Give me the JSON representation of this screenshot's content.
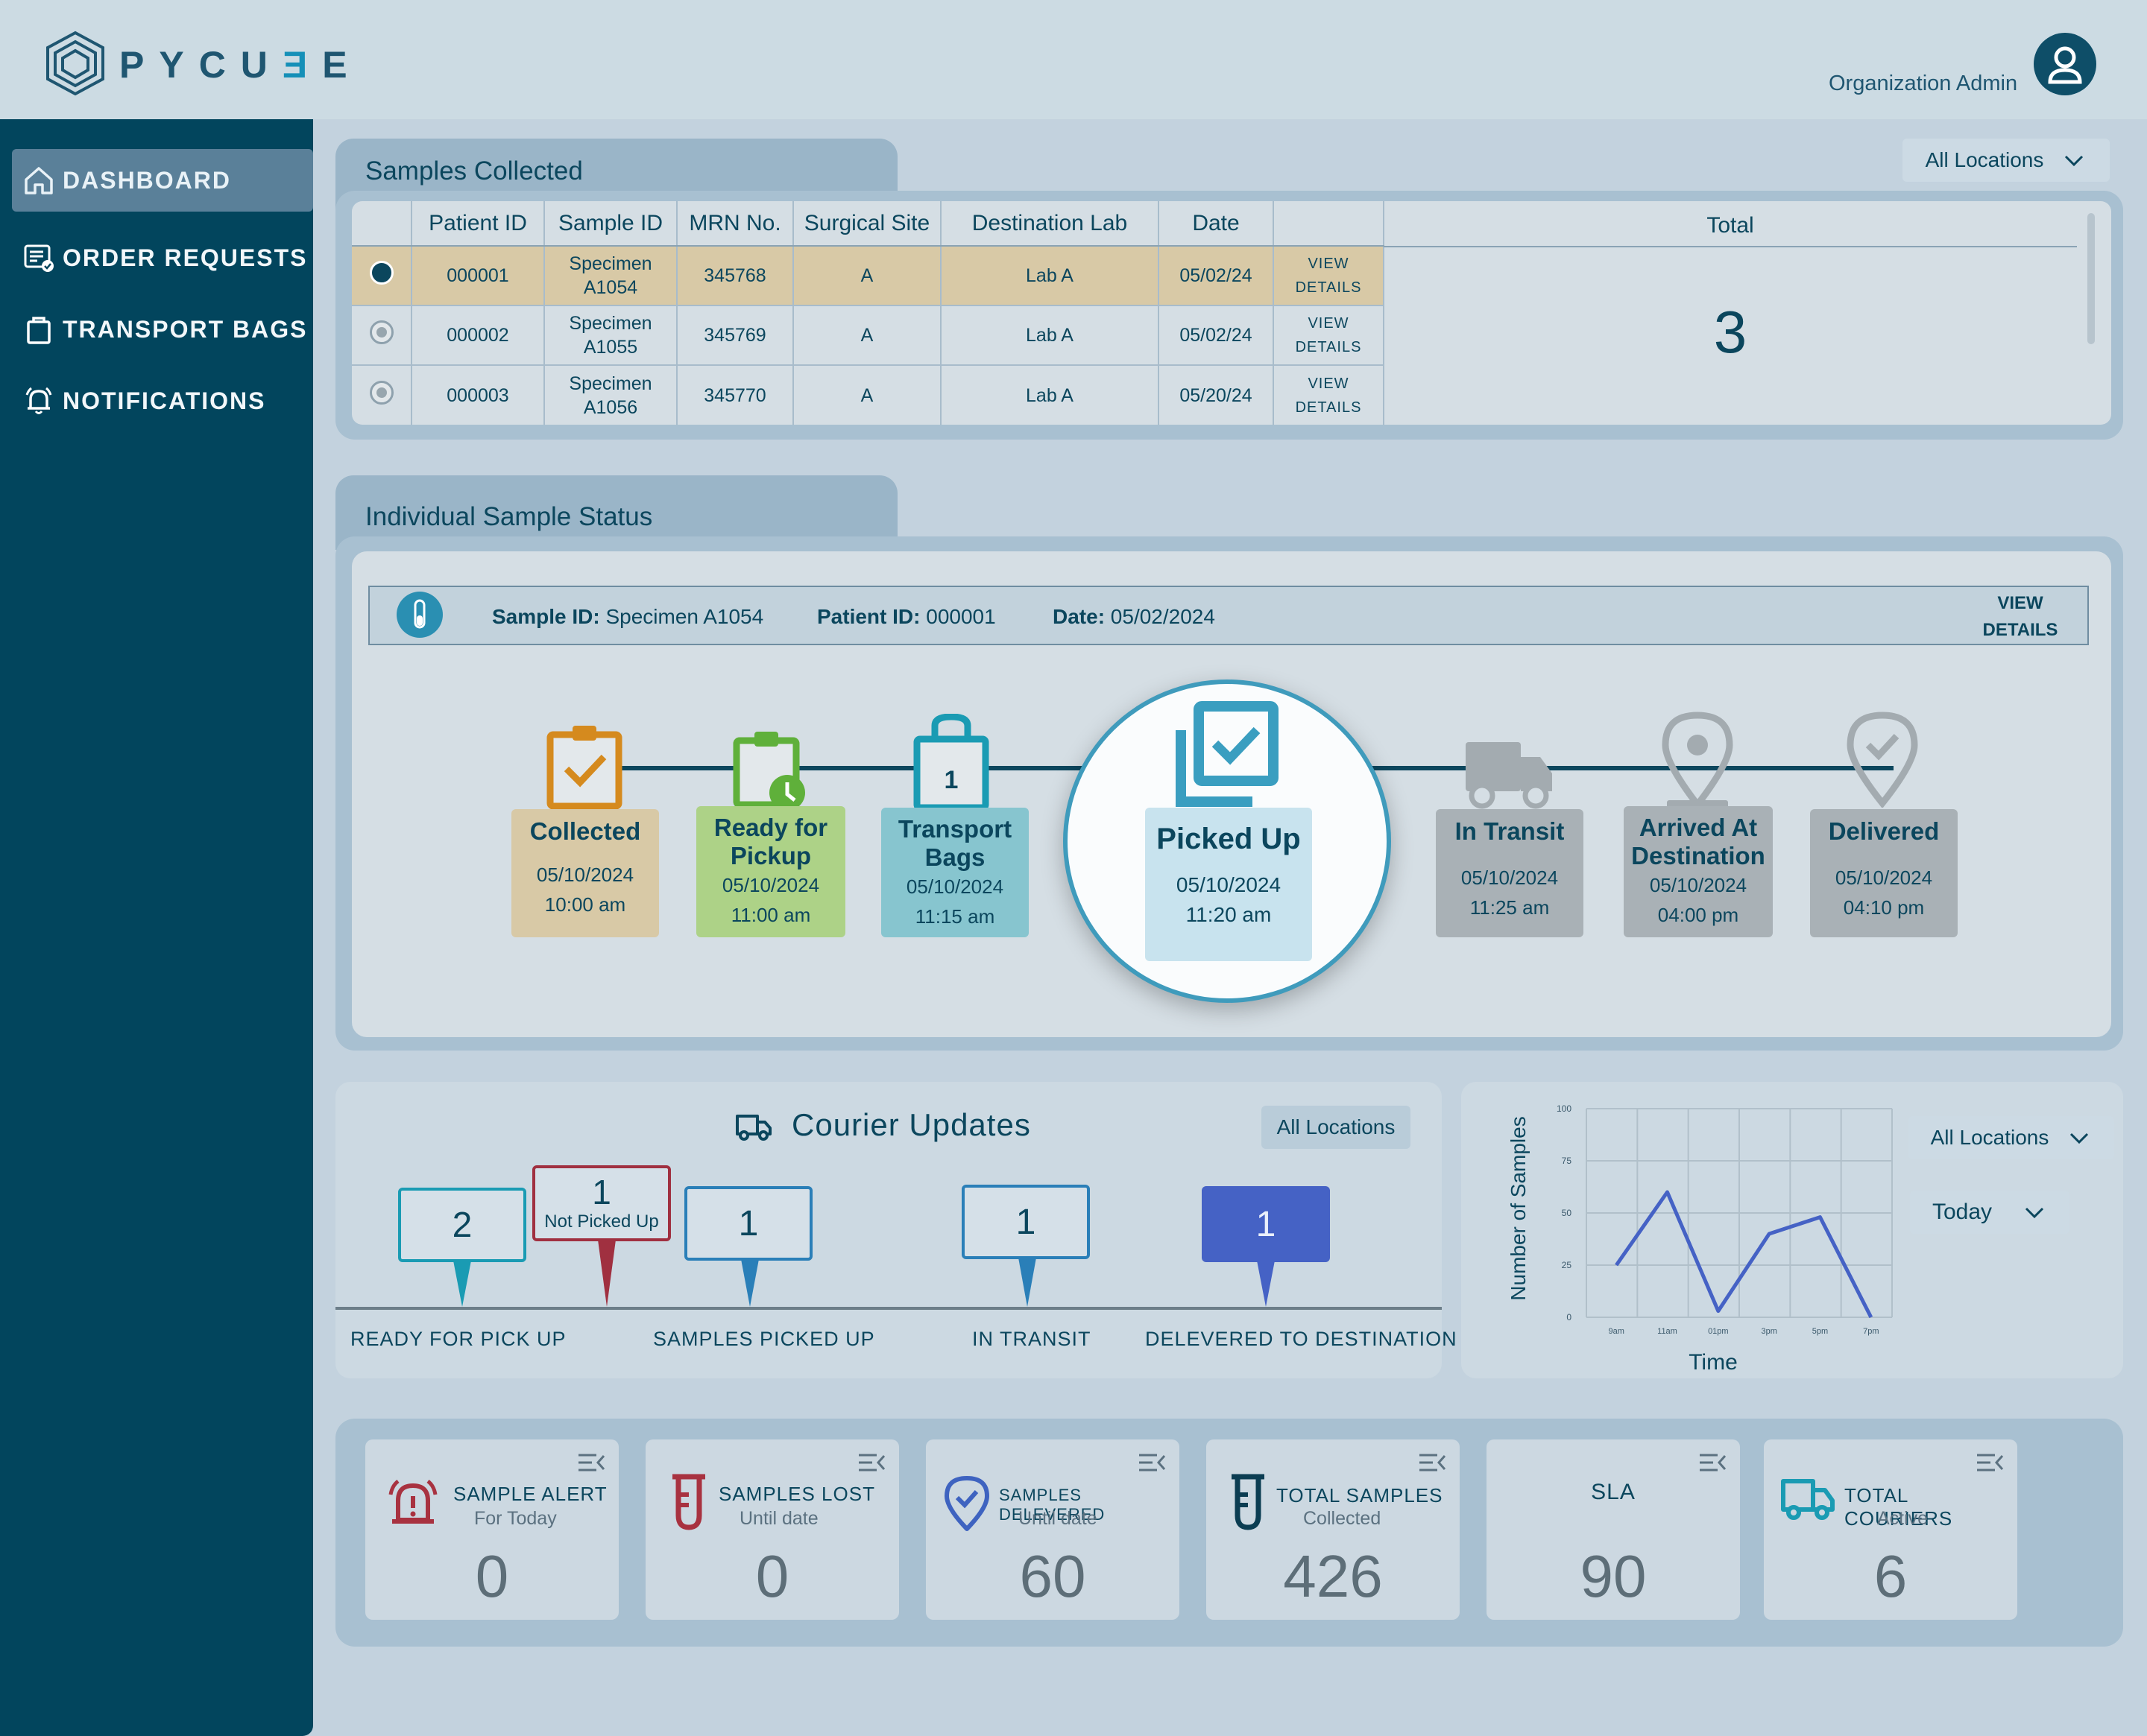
{
  "app": {
    "logo_text_a": "PYCU",
    "logo_text_b": "Ǝ",
    "logo_text_c": "E",
    "user_role": "Organization Admin"
  },
  "sidebar": {
    "items": [
      {
        "label": "DASHBOARD",
        "icon": "home-icon",
        "active": true
      },
      {
        "label": "ORDER REQUESTS",
        "icon": "order-list-icon"
      },
      {
        "label": "TRANSPORT BAGS",
        "icon": "bag-icon"
      },
      {
        "label": "NOTIFICATIONS",
        "icon": "bell-icon"
      }
    ]
  },
  "samples": {
    "title": "Samples Collected",
    "location_filter": "All Locations",
    "columns": [
      "Patient ID",
      "Sample ID",
      "MRN No.",
      "Surgical Site",
      "Destination Lab",
      "Date"
    ],
    "total_label": "Total",
    "total_value": "3",
    "view_label_1": "VIEW",
    "view_label_2": "DETAILS",
    "rows": [
      {
        "patient": "000001",
        "sample_1": "Specimen",
        "sample_2": "A1054",
        "mrn": "345768",
        "site": "A",
        "lab": "Lab A",
        "date": "05/02/24"
      },
      {
        "patient": "000002",
        "sample_1": "Specimen",
        "sample_2": "A1055",
        "mrn": "345769",
        "site": "A",
        "lab": "Lab A",
        "date": "05/02/24"
      },
      {
        "patient": "000003",
        "sample_1": "Specimen",
        "sample_2": "A1056",
        "mrn": "345770",
        "site": "A",
        "lab": "Lab A",
        "date": "05/20/24"
      }
    ]
  },
  "status": {
    "title": "Individual Sample Status",
    "sample_id_label": "Sample ID:",
    "sample_id": "Specimen A1054",
    "patient_id_label": "Patient ID:",
    "patient_id": "000001",
    "date_label": "Date:",
    "date": "05/02/2024",
    "view_1": "VIEW",
    "view_2": "DETAILS",
    "stages": [
      {
        "t1": "Collected",
        "t2": "",
        "date": "05/10/2024",
        "time": "10:00 am"
      },
      {
        "t1": "Ready for",
        "t2": "Pickup",
        "date": "05/10/2024",
        "time": "11:00 am"
      },
      {
        "t1": "Transport",
        "t2": "Bags",
        "date": "05/10/2024",
        "time": "11:15 am",
        "badge": "1"
      },
      {
        "t1": "Picked Up",
        "t2": "",
        "date": "05/10/2024",
        "time": "11:20 am"
      },
      {
        "t1": "In Transit",
        "t2": "",
        "date": "05/10/2024",
        "time": "11:25 am"
      },
      {
        "t1": "Arrived At",
        "t2": "Destination",
        "date": "05/10/2024",
        "time": "04:00 pm"
      },
      {
        "t1": "Delivered",
        "t2": "",
        "date": "05/10/2024",
        "time": "04:10 pm"
      }
    ],
    "colors": {
      "collected": "#d9a21e",
      "ready": "#7ac043",
      "bags": "#1a9bb3",
      "picked": "#2a8fb2",
      "pending": "#a3abb0"
    }
  },
  "courier": {
    "title": "Courier Updates",
    "location": "All Locations",
    "pins": [
      {
        "value": "2",
        "label": "READY FOR PICK UP"
      },
      {
        "value": "1",
        "sub": "Not Picked Up"
      },
      {
        "value": "1",
        "label": "SAMPLES PICKED UP"
      },
      {
        "value": "1",
        "label": "IN TRANSIT"
      },
      {
        "value": "1",
        "label": "DELEVERED TO DESTINATION"
      }
    ]
  },
  "chart": {
    "location": "All Locations",
    "period": "Today"
  },
  "chart_data": {
    "type": "line",
    "x": [
      "9am",
      "11am",
      "01pm",
      "3pm",
      "5pm",
      "7pm"
    ],
    "y_ticks": [
      "100",
      "75",
      "50",
      "25",
      "0"
    ],
    "series": [
      {
        "values": [
          25,
          60,
          3,
          40,
          48,
          0
        ]
      }
    ],
    "ylim": [
      0,
      100
    ],
    "xlabel": "Time",
    "ylabel": "Number of Samples",
    "grid": true
  },
  "kpis": [
    {
      "title": "SAMPLE ALERT",
      "sub": "For Today",
      "value": "0",
      "icon": "alarm-icon"
    },
    {
      "title": "SAMPLES LOST",
      "sub": "Until date",
      "value": "0",
      "icon": "test-tube-icon"
    },
    {
      "title": "SAMPLES DELEVERED",
      "sub": "Until date",
      "value": "60",
      "icon": "location-check-icon"
    },
    {
      "title": "TOTAL SAMPLES",
      "sub": "Collected",
      "value": "426",
      "icon": "test-tube-icon"
    },
    {
      "title": "SLA",
      "sub": "",
      "value": "90"
    },
    {
      "title": "TOTAL COURIERS",
      "sub": "Active",
      "value": "6",
      "icon": "truck-icon"
    }
  ]
}
